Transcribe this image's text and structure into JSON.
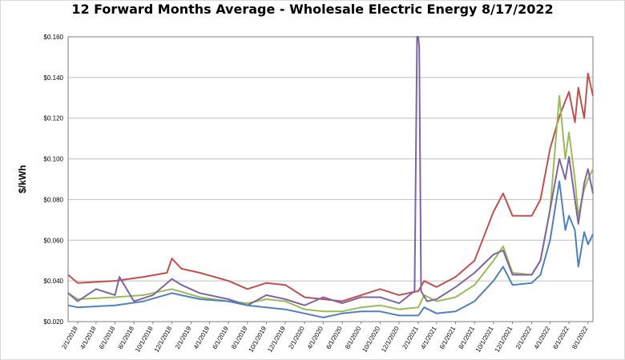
{
  "chart_data": {
    "type": "line",
    "title": "12 Forward Months Average - Wholesale Electric Energy 8/17/2022",
    "xlabel": "",
    "ylabel": "$/kWh",
    "ylim": [
      0.02,
      0.16
    ],
    "yticks": [
      "$0.020",
      "$0.040",
      "$0.060",
      "$0.080",
      "$0.100",
      "$0.120",
      "$0.140",
      "$0.160"
    ],
    "xticks": [
      "2/1/2018",
      "4/1/2018",
      "6/1/2018",
      "8/1/2018",
      "10/1/2018",
      "12/1/2018",
      "2/1/2019",
      "4/1/2019",
      "6/1/2019",
      "8/1/2019",
      "10/1/2019",
      "12/1/2019",
      "2/1/2020",
      "4/1/2020",
      "6/1/2020",
      "8/1/2020",
      "10/1/2020",
      "12/1/2020",
      "2/1/2021",
      "4/1/2021",
      "6/1/2021",
      "8/1/2021",
      "10/1/2021",
      "12/1/2021",
      "2/1/2022",
      "4/1/2022",
      "6/1/2022",
      "8/1/2022"
    ],
    "grid": true,
    "legend": "none",
    "series": [
      {
        "color": "#c0504d",
        "x": [
          "2018-01-01",
          "2018-02-01",
          "2018-06-01",
          "2018-09-01",
          "2018-11-15",
          "2018-12-01",
          "2019-01-01",
          "2019-03-01",
          "2019-06-01",
          "2019-08-01",
          "2019-10-01",
          "2019-12-01",
          "2020-02-01",
          "2020-04-01",
          "2020-06-01",
          "2020-08-01",
          "2020-10-01",
          "2020-12-01",
          "2021-02-01",
          "2021-02-20",
          "2021-04-01",
          "2021-06-01",
          "2021-08-01",
          "2021-10-01",
          "2021-11-01",
          "2021-12-01",
          "2022-02-01",
          "2022-03-01",
          "2022-04-01",
          "2022-05-01",
          "2022-06-01",
          "2022-06-20",
          "2022-07-01",
          "2022-07-20",
          "2022-08-01",
          "2022-08-17"
        ],
        "values": [
          0.043,
          0.039,
          0.04,
          0.042,
          0.044,
          0.051,
          0.046,
          0.044,
          0.04,
          0.036,
          0.039,
          0.038,
          0.032,
          0.031,
          0.03,
          0.033,
          0.036,
          0.033,
          0.035,
          0.04,
          0.037,
          0.042,
          0.05,
          0.074,
          0.083,
          0.072,
          0.072,
          0.08,
          0.105,
          0.121,
          0.133,
          0.118,
          0.135,
          0.12,
          0.142,
          0.131
        ]
      },
      {
        "color": "#9bbb59",
        "x": [
          "2018-01-01",
          "2018-02-01",
          "2018-06-01",
          "2018-09-01",
          "2018-12-01",
          "2019-03-01",
          "2019-06-01",
          "2019-08-01",
          "2019-10-01",
          "2019-12-01",
          "2020-02-01",
          "2020-04-01",
          "2020-06-01",
          "2020-08-01",
          "2020-10-01",
          "2020-12-01",
          "2021-02-01",
          "2021-02-20",
          "2021-04-01",
          "2021-06-01",
          "2021-08-01",
          "2021-10-01",
          "2021-11-01",
          "2021-12-01",
          "2022-02-01",
          "2022-03-01",
          "2022-04-01",
          "2022-05-01",
          "2022-05-20",
          "2022-06-01",
          "2022-06-20",
          "2022-07-01",
          "2022-07-20",
          "2022-08-01",
          "2022-08-17"
        ],
        "values": [
          0.034,
          0.031,
          0.032,
          0.033,
          0.036,
          0.032,
          0.03,
          0.029,
          0.031,
          0.03,
          0.026,
          0.025,
          0.025,
          0.027,
          0.028,
          0.026,
          0.027,
          0.033,
          0.03,
          0.032,
          0.038,
          0.05,
          0.057,
          0.044,
          0.043,
          0.05,
          0.075,
          0.131,
          0.1,
          0.113,
          0.09,
          0.072,
          0.085,
          0.09,
          0.095
        ]
      },
      {
        "color": "#8064a2",
        "x": [
          "2018-01-01",
          "2018-02-01",
          "2018-04-01",
          "2018-06-01",
          "2018-06-15",
          "2018-08-01",
          "2018-10-01",
          "2018-12-01",
          "2019-01-01",
          "2019-03-01",
          "2019-06-01",
          "2019-08-01",
          "2019-10-01",
          "2019-12-01",
          "2020-02-01",
          "2020-04-01",
          "2020-06-01",
          "2020-08-01",
          "2020-10-01",
          "2020-12-01",
          "2021-01-20",
          "2021-01-28",
          "2021-02-01",
          "2021-02-04",
          "2021-02-10",
          "2021-03-01",
          "2021-04-01",
          "2021-06-01",
          "2021-08-01",
          "2021-10-01",
          "2021-11-01",
          "2021-12-01",
          "2022-02-01",
          "2022-03-01",
          "2022-04-01",
          "2022-05-01",
          "2022-05-20",
          "2022-06-01",
          "2022-06-20",
          "2022-07-01",
          "2022-07-20",
          "2022-08-01",
          "2022-08-17"
        ],
        "values": [
          0.034,
          0.03,
          0.036,
          0.033,
          0.042,
          0.03,
          0.033,
          0.041,
          0.038,
          0.034,
          0.031,
          0.028,
          0.033,
          0.031,
          0.028,
          0.032,
          0.029,
          0.032,
          0.032,
          0.029,
          0.035,
          0.162,
          0.16,
          0.155,
          0.035,
          0.03,
          0.031,
          0.037,
          0.044,
          0.053,
          0.055,
          0.043,
          0.043,
          0.05,
          0.075,
          0.1,
          0.09,
          0.101,
          0.08,
          0.068,
          0.088,
          0.095,
          0.083
        ]
      },
      {
        "color": "#4f81bd",
        "x": [
          "2018-01-01",
          "2018-02-01",
          "2018-06-01",
          "2018-09-01",
          "2018-12-01",
          "2019-03-01",
          "2019-06-01",
          "2019-08-01",
          "2019-10-01",
          "2019-12-01",
          "2020-02-01",
          "2020-04-01",
          "2020-06-01",
          "2020-08-01",
          "2020-10-01",
          "2020-12-01",
          "2021-02-01",
          "2021-02-20",
          "2021-04-01",
          "2021-06-01",
          "2021-08-01",
          "2021-10-01",
          "2021-11-01",
          "2021-12-01",
          "2022-02-01",
          "2022-03-01",
          "2022-04-01",
          "2022-05-01",
          "2022-05-20",
          "2022-06-01",
          "2022-06-20",
          "2022-07-01",
          "2022-07-20",
          "2022-08-01",
          "2022-08-17"
        ],
        "values": [
          0.028,
          0.027,
          0.028,
          0.03,
          0.034,
          0.031,
          0.03,
          0.028,
          0.027,
          0.026,
          0.024,
          0.022,
          0.024,
          0.025,
          0.025,
          0.023,
          0.023,
          0.027,
          0.024,
          0.025,
          0.03,
          0.04,
          0.047,
          0.038,
          0.039,
          0.043,
          0.06,
          0.089,
          0.065,
          0.072,
          0.065,
          0.047,
          0.064,
          0.058,
          0.063
        ]
      }
    ]
  }
}
